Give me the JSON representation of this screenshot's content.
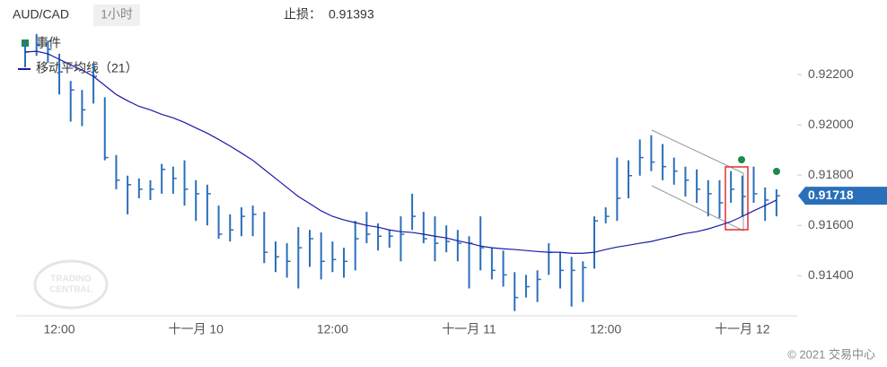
{
  "chart_data": {
    "type": "ohlc",
    "title": "AUD/CAD",
    "interval": "1小时",
    "stop_label": "止损：",
    "stop_value": 0.91393,
    "legend_event": "事件",
    "copyright": "© 2021 交易中心",
    "categories": [
      null,
      null,
      null,
      "12:00",
      null,
      null,
      null,
      null,
      null,
      null,
      null,
      null,
      null,
      null,
      null,
      "十一月 10",
      null,
      null,
      null,
      null,
      null,
      null,
      null,
      null,
      null,
      null,
      null,
      "12:00",
      null,
      null,
      null,
      null,
      null,
      null,
      null,
      null,
      null,
      null,
      null,
      "十一月 11",
      null,
      null,
      null,
      null,
      null,
      null,
      null,
      null,
      null,
      null,
      null,
      "12:00",
      null,
      null,
      null,
      null,
      null,
      null,
      null,
      null,
      null,
      null,
      null,
      "十一月 12",
      null,
      null,
      null
    ],
    "series": [
      {
        "name": "AUD/CAD",
        "color": "#2a6fba",
        "high": [
          0.92336,
          0.92362,
          0.92336,
          0.92283,
          0.92175,
          0.92139,
          0.92247,
          0.9211,
          0.9188,
          0.91798,
          0.91787,
          0.9178,
          0.91845,
          0.91834,
          0.91859,
          0.9178,
          0.91762,
          0.91679,
          0.91644,
          0.91672,
          0.91679,
          0.91654,
          0.91536,
          0.91529,
          0.91593,
          0.91582,
          0.91572,
          0.91536,
          0.91511,
          0.91618,
          0.91654,
          0.91608,
          0.91582,
          0.91636,
          0.91726,
          0.91654,
          0.91636,
          0.916,
          0.91582,
          0.91557,
          0.91636,
          0.91511,
          0.915,
          0.91414,
          0.91403,
          0.91421,
          0.91529,
          0.91493,
          0.91475,
          0.91457,
          0.91636,
          0.91672,
          0.9187,
          0.91859,
          0.91942,
          0.91959,
          0.91924,
          0.9187,
          0.91834,
          0.91823,
          0.9178,
          0.9178,
          0.91816,
          0.91798,
          0.91834,
          0.91751,
          0.91744
        ],
        "low": [
          0.92229,
          0.92275,
          0.92247,
          0.92121,
          0.92013,
          0.91995,
          0.92085,
          0.91859,
          0.91744,
          0.91644,
          0.91708,
          0.91701,
          0.91726,
          0.91726,
          0.91679,
          0.91618,
          0.916,
          0.91547,
          0.91536,
          0.91557,
          0.91557,
          0.9145,
          0.91414,
          0.91392,
          0.91349,
          0.91435,
          0.91385,
          0.91414,
          0.91392,
          0.91421,
          0.91529,
          0.915,
          0.91511,
          0.91457,
          0.91582,
          0.91529,
          0.91457,
          0.91493,
          0.91457,
          0.91349,
          0.91421,
          0.91385,
          0.91356,
          0.91259,
          0.91313,
          0.91295,
          0.91403,
          0.91349,
          0.91277,
          0.91295,
          0.91428,
          0.91608,
          0.91618,
          0.91708,
          0.91798,
          0.91816,
          0.9178,
          0.91762,
          0.91715,
          0.9169,
          0.91636,
          0.91629,
          0.9169,
          0.91636,
          0.9169,
          0.91618,
          0.91636
        ],
        "close": [
          0.9229,
          0.92318,
          0.92301,
          0.92211,
          0.92139,
          0.9206,
          0.92193,
          0.9187,
          0.9178,
          0.91762,
          0.91744,
          0.91744,
          0.91823,
          0.91787,
          0.91744,
          0.91726,
          0.91726,
          0.91565,
          0.91582,
          0.91636,
          0.91644,
          0.91493,
          0.91475,
          0.91457,
          0.91511,
          0.91547,
          0.91457,
          0.91464,
          0.91457,
          0.91547,
          0.91565,
          0.91557,
          0.91557,
          0.91565,
          0.91636,
          0.91547,
          0.91529,
          0.91536,
          0.91529,
          0.91529,
          0.91511,
          0.91421,
          0.91403,
          0.91313,
          0.91356,
          0.91385,
          0.91493,
          0.91421,
          0.91421,
          0.91432,
          0.91618,
          0.91636,
          0.91708,
          0.91798,
          0.9187,
          0.91852,
          0.91834,
          0.91816,
          0.9178,
          0.91744,
          0.91726,
          0.9169,
          0.91744,
          0.91715,
          0.91726,
          0.91701,
          0.91718
        ]
      },
      {
        "name": "移动平均线（21）",
        "color": "#1a1aa8",
        "values": [
          0.9229,
          0.92293,
          0.92283,
          0.92261,
          0.92239,
          0.92218,
          0.92193,
          0.92157,
          0.92121,
          0.92096,
          0.92074,
          0.9206,
          0.92042,
          0.92028,
          0.9201,
          0.91988,
          0.91967,
          0.91942,
          0.91916,
          0.91888,
          0.91859,
          0.91823,
          0.91787,
          0.91751,
          0.91715,
          0.91687,
          0.91658,
          0.91636,
          0.91622,
          0.91611,
          0.916,
          0.91593,
          0.91582,
          0.91575,
          0.91572,
          0.91565,
          0.91557,
          0.9155,
          0.91539,
          0.91529,
          0.91518,
          0.91511,
          0.91507,
          0.91504,
          0.915,
          0.91496,
          0.91493,
          0.91493,
          0.91489,
          0.91489,
          0.91493,
          0.91504,
          0.91514,
          0.91521,
          0.91529,
          0.91536,
          0.91547,
          0.91557,
          0.91568,
          0.91575,
          0.91586,
          0.916,
          0.91615,
          0.91636,
          0.91658,
          0.91679,
          0.91701
        ]
      }
    ],
    "last_price": 0.91718,
    "ylim": [
      0.9124,
      0.9239
    ],
    "yticks": [
      {
        "value": 0.914,
        "label": "0.91400"
      },
      {
        "value": 0.916,
        "label": "0.91600"
      },
      {
        "value": 0.918,
        "label": "0.91800"
      },
      {
        "value": 0.92,
        "label": "0.92000"
      },
      {
        "value": 0.922,
        "label": "0.92200"
      }
    ]
  }
}
